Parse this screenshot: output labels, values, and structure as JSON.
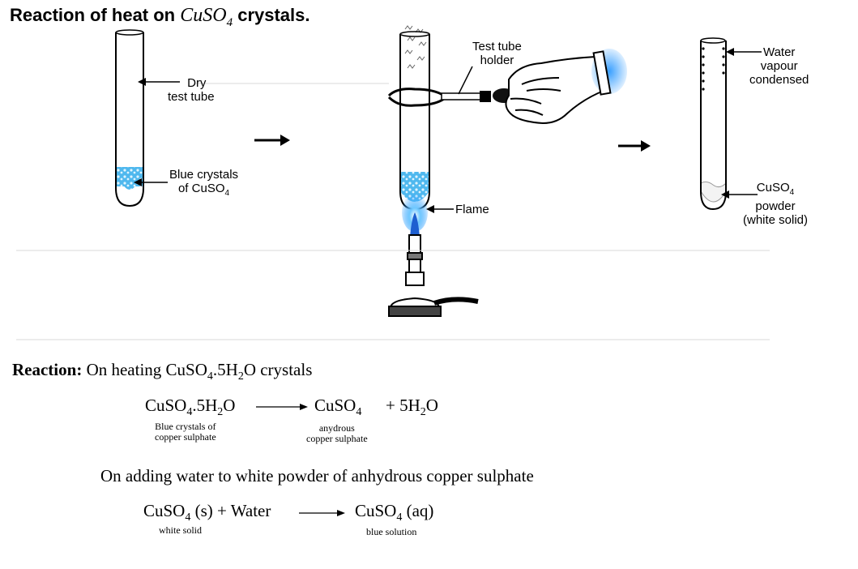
{
  "title": {
    "prefix": "Reaction of heat on ",
    "formula": "CuSO",
    "formula_sub": "4",
    "suffix": " crystals."
  },
  "labels": {
    "dry_test_tube": {
      "line1": "Dry",
      "line2": "test tube"
    },
    "blue_crystals": {
      "line1": "Blue crystals",
      "line2": "of CuSO",
      "sub": "4"
    },
    "test_tube_holder": {
      "line1": "Test tube",
      "line2": "holder"
    },
    "flame": "Flame",
    "water_vapour": {
      "line1": "Water",
      "line2": "vapour",
      "line3": "condensed"
    },
    "cuso4_powder": {
      "line1": "CuSO",
      "sub": "4",
      "line2": "powder",
      "line3": "(white solid)"
    }
  },
  "reaction": {
    "heading": "Reaction:",
    "intro": {
      "text1": "On heating CuSO",
      "sub1": "4",
      "text2": ".5H",
      "sub2": "2",
      "text3": "O crystals"
    },
    "equation1": {
      "lhs": {
        "text1": "CuSO",
        "sub1": "4",
        "text2": ".5H",
        "sub2": "2",
        "text3": "O"
      },
      "rhs1": {
        "text1": "CuSO",
        "sub1": "4"
      },
      "rhs2": {
        "text1": "+ 5H",
        "sub1": "2",
        "text2": "O"
      },
      "lhs_note": {
        "line1": "Blue crystals of",
        "line2": "copper sulphate"
      },
      "rhs_note": {
        "line1": "anydrous",
        "line2": "copper sulphate"
      }
    },
    "adding_water": "On adding water to white powder of anhydrous copper sulphate",
    "equation2": {
      "lhs": {
        "text1": "CuSO",
        "sub1": "4",
        "text2": " (s) + Water"
      },
      "rhs": {
        "text1": "CuSO",
        "sub1": "4",
        "text2": " (aq)"
      },
      "lhs_note": "white solid",
      "rhs_note": "blue solution"
    }
  },
  "colors": {
    "crystal_blue": "#4fb8ee",
    "flame_blue": "#1e90ff",
    "text": "#000000",
    "ghost_text": "#d8d8d8"
  }
}
